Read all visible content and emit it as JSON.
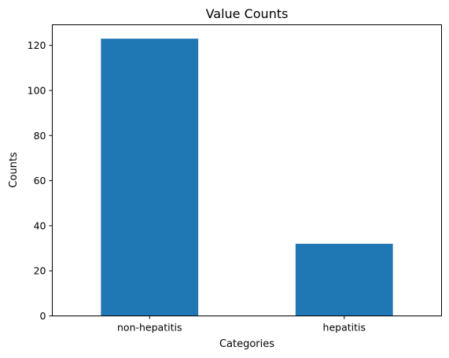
{
  "chart_data": {
    "type": "bar",
    "title": "Value Counts",
    "xlabel": "Categories",
    "ylabel": "Counts",
    "categories": [
      "non-hepatitis",
      "hepatitis"
    ],
    "values": [
      123,
      32
    ],
    "ylim": [
      0,
      129.15
    ],
    "yticks": [
      0,
      20,
      40,
      60,
      80,
      100,
      120
    ],
    "bar_color": "#1f77b4",
    "grid": false,
    "legend": "none"
  }
}
